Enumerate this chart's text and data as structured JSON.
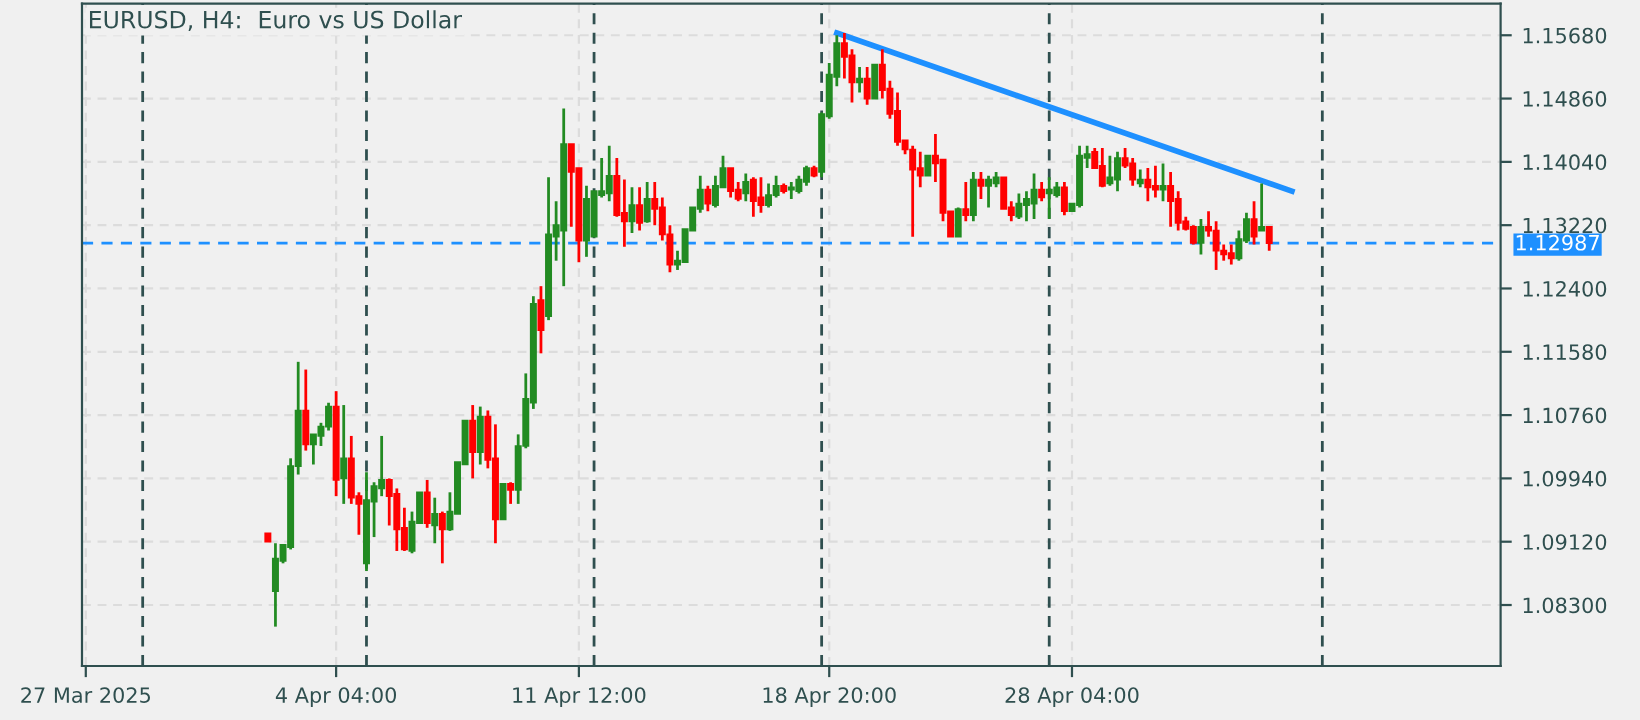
{
  "chart_data": {
    "type": "candlestick",
    "title": "EURUSD, H4:  Euro vs US Dollar",
    "categories": [
      "27 Mar 2025",
      null,
      null,
      null,
      null,
      null,
      null,
      null,
      null,
      null,
      null,
      null,
      null,
      null,
      null,
      null,
      null,
      null,
      null,
      null,
      null,
      null,
      null,
      null,
      null,
      null,
      null,
      null,
      null,
      null,
      null,
      null,
      null,
      "4 Apr 04:00",
      null,
      null,
      null,
      null,
      null,
      null,
      null,
      null,
      null,
      null,
      null,
      null,
      null,
      null,
      null,
      null,
      null,
      null,
      null,
      null,
      null,
      null,
      null,
      null,
      null,
      null,
      null,
      null,
      null,
      null,
      null,
      "11 Apr 12:00",
      null,
      null,
      null,
      null,
      null,
      null,
      null,
      null,
      null,
      null,
      null,
      null,
      null,
      null,
      null,
      null,
      null,
      null,
      null,
      null,
      null,
      null,
      null,
      null,
      null,
      null,
      null,
      null,
      null,
      null,
      null,
      null,
      "18 Apr 20:00",
      null,
      null,
      null,
      null,
      null,
      null,
      null,
      null,
      null,
      null,
      null,
      null,
      null,
      null,
      null,
      null,
      null,
      null,
      null,
      null,
      null,
      null,
      null,
      null,
      null,
      null,
      null,
      null,
      null,
      null,
      null,
      "28 Apr 04:00",
      null,
      null,
      null,
      null,
      null,
      null,
      null,
      null,
      null,
      null,
      null,
      null,
      null,
      null,
      null,
      null,
      null,
      null,
      null,
      null,
      null,
      null,
      null,
      null,
      null,
      null,
      null,
      null,
      null,
      null,
      null,
      null,
      null,
      null,
      null,
      null,
      null,
      null,
      null,
      null,
      null,
      null,
      null,
      null,
      null,
      null,
      null,
      null,
      null,
      null,
      null,
      null,
      null,
      null,
      null,
      null
    ],
    "ohlc": [
      null,
      null,
      null,
      null,
      null,
      null,
      null,
      null,
      null,
      null,
      null,
      null,
      null,
      null,
      null,
      null,
      null,
      null,
      null,
      null,
      null,
      null,
      null,
      null,
      [
        1.0923,
        1.0923,
        1.0912,
        1.0912
      ],
      [
        1.0848,
        1.091,
        1.0802,
        1.089
      ],
      [
        1.0887,
        1.0908,
        1.0884,
        1.0908
      ],
      [
        1.0905,
        1.102,
        1.0902,
        1.101
      ],
      [
        1.101,
        1.1145,
        1.0999,
        1.1082
      ],
      [
        1.1082,
        1.1135,
        1.103,
        1.1038
      ],
      [
        1.1038,
        1.1051,
        1.1012,
        1.1051
      ],
      [
        1.1049,
        1.1066,
        1.1036,
        1.1061
      ],
      [
        1.1061,
        1.1092,
        1.1056,
        1.1087
      ],
      [
        1.1087,
        1.1107,
        1.0971,
        1.0992
      ],
      [
        1.0994,
        1.1089,
        1.0961,
        1.102
      ],
      [
        1.102,
        1.1049,
        1.0961,
        1.0969
      ],
      [
        1.0971,
        1.0976,
        1.0921,
        1.0961
      ],
      [
        1.0884,
        1.1002,
        1.0874,
        1.0966
      ],
      [
        1.0964,
        1.0989,
        1.0918,
        1.0984
      ],
      [
        1.0981,
        1.1049,
        1.0971,
        1.0992
      ],
      [
        1.0992,
        1.0994,
        1.0933,
        1.0971
      ],
      [
        1.0974,
        1.0981,
        1.09,
        1.0928
      ],
      [
        1.093,
        1.0956,
        1.09,
        1.0902
      ],
      [
        1.09,
        1.0951,
        1.0897,
        1.0938
      ],
      [
        1.0936,
        1.0976,
        1.0936,
        1.0976
      ],
      [
        1.0976,
        1.0992,
        1.093,
        1.0936
      ],
      [
        1.0933,
        1.0969,
        1.091,
        1.0948
      ],
      [
        1.0948,
        1.0951,
        1.0884,
        1.0928
      ],
      [
        1.0928,
        1.0976,
        1.0926,
        1.0951
      ],
      [
        1.0948,
        1.1015,
        1.0948,
        1.1015
      ],
      [
        1.1012,
        1.1069,
        1.1012,
        1.1069
      ],
      [
        1.1069,
        1.1089,
        1.0994,
        1.1028
      ],
      [
        1.1028,
        1.1087,
        1.1012,
        1.1074
      ],
      [
        1.1074,
        1.1082,
        1.1007,
        1.1018
      ],
      [
        1.102,
        1.1064,
        1.091,
        1.0941
      ],
      [
        1.0941,
        1.0987,
        1.0941,
        1.0987
      ],
      [
        1.0987,
        1.0989,
        1.0961,
        1.0979
      ],
      [
        1.0979,
        1.1051,
        1.0961,
        1.1036
      ],
      [
        1.1036,
        1.113,
        1.1033,
        1.1097
      ],
      [
        1.1092,
        1.123,
        1.1084,
        1.122
      ],
      [
        1.1225,
        1.1243,
        1.1156,
        1.1186
      ],
      [
        1.1204,
        1.1384,
        1.1199,
        1.131
      ],
      [
        1.1307,
        1.1353,
        1.1276,
        1.1322
      ],
      [
        1.1315,
        1.1473,
        1.1243,
        1.1427
      ],
      [
        1.1427,
        1.1427,
        1.132,
        1.1391
      ],
      [
        1.1396,
        1.1396,
        1.1274,
        1.1302
      ],
      [
        1.1302,
        1.1373,
        1.1281,
        1.1356
      ],
      [
        1.1307,
        1.1366,
        1.1307,
        1.1366
      ],
      [
        1.1361,
        1.1409,
        1.1358,
        1.1366
      ],
      [
        1.1363,
        1.1425,
        1.1353,
        1.1386
      ],
      [
        1.1386,
        1.1409,
        1.1333,
        1.1335
      ],
      [
        1.1338,
        1.1381,
        1.1294,
        1.1327
      ],
      [
        1.1327,
        1.1371,
        1.1312,
        1.1348
      ],
      [
        1.1348,
        1.1371,
        1.1315,
        1.1325
      ],
      [
        1.1327,
        1.1378,
        1.1325,
        1.1356
      ],
      [
        1.1356,
        1.1378,
        1.1322,
        1.1343
      ],
      [
        1.1345,
        1.1358,
        1.1302,
        1.131
      ],
      [
        1.131,
        1.1322,
        1.1261,
        1.1271
      ],
      [
        1.1271,
        1.1289,
        1.1264,
        1.1276
      ],
      [
        1.1274,
        1.1317,
        1.1274,
        1.1317
      ],
      [
        1.1315,
        1.1345,
        1.1315,
        1.1345
      ],
      [
        1.1343,
        1.1386,
        1.1338,
        1.1368
      ],
      [
        1.1368,
        1.1373,
        1.134,
        1.135
      ],
      [
        1.1348,
        1.1386,
        1.1345,
        1.1373
      ],
      [
        1.1371,
        1.1412,
        1.1371,
        1.1396
      ],
      [
        1.1396,
        1.1396,
        1.1358,
        1.1366
      ],
      [
        1.1368,
        1.1378,
        1.1353,
        1.1356
      ],
      [
        1.1363,
        1.1389,
        1.1353,
        1.1378
      ],
      [
        1.1381,
        1.1384,
        1.1333,
        1.1353
      ],
      [
        1.1358,
        1.1384,
        1.1338,
        1.1348
      ],
      [
        1.1348,
        1.1376,
        1.1345,
        1.1361
      ],
      [
        1.1361,
        1.1386,
        1.1358,
        1.1373
      ],
      [
        1.1373,
        1.1376,
        1.1363,
        1.1366
      ],
      [
        1.1368,
        1.1378,
        1.1356,
        1.1371
      ],
      [
        1.1366,
        1.1386,
        1.1363,
        1.1381
      ],
      [
        1.1378,
        1.1399,
        1.1373,
        1.1396
      ],
      [
        1.1396,
        1.1399,
        1.1384,
        1.1386
      ],
      [
        1.1391,
        1.1468,
        1.1384,
        1.1466
      ],
      [
        1.1463,
        1.1532,
        1.146,
        1.1517
      ],
      [
        1.1514,
        1.1568,
        1.1502,
        1.1558
      ],
      [
        1.1558,
        1.1571,
        1.1512,
        1.154
      ],
      [
        1.1542,
        1.155,
        1.1481,
        1.1507
      ],
      [
        1.1507,
        1.1527,
        1.1494,
        1.1512
      ],
      [
        1.1512,
        1.1527,
        1.1478,
        1.1486
      ],
      [
        1.1486,
        1.153,
        1.1486,
        1.153
      ],
      [
        1.153,
        1.155,
        1.1486,
        1.1497
      ],
      [
        1.1499,
        1.1509,
        1.146,
        1.1466
      ],
      [
        1.147,
        1.1494,
        1.1425,
        1.143
      ],
      [
        1.1432,
        1.1432,
        1.1414,
        1.142
      ],
      [
        1.142,
        1.1425,
        1.1307,
        1.1394
      ],
      [
        1.1396,
        1.1417,
        1.1371,
        1.1386
      ],
      [
        1.1386,
        1.1412,
        1.1386,
        1.1412
      ],
      [
        1.1412,
        1.144,
        1.1378,
        1.1402
      ],
      [
        1.1407,
        1.1407,
        1.1327,
        1.1338
      ],
      [
        1.134,
        1.134,
        1.1307,
        1.1307
      ],
      [
        1.1307,
        1.1345,
        1.1307,
        1.1343
      ],
      [
        1.1343,
        1.1378,
        1.1327,
        1.1335
      ],
      [
        1.1335,
        1.1391,
        1.1327,
        1.1381
      ],
      [
        1.1381,
        1.1391,
        1.1356,
        1.1373
      ],
      [
        1.1373,
        1.1386,
        1.1345,
        1.1381
      ],
      [
        1.1376,
        1.1391,
        1.1371,
        1.1384
      ],
      [
        1.1384,
        1.1384,
        1.1343,
        1.1343
      ],
      [
        1.1345,
        1.1353,
        1.1327,
        1.1335
      ],
      [
        1.1333,
        1.1363,
        1.133,
        1.135
      ],
      [
        1.1348,
        1.1366,
        1.1327,
        1.1356
      ],
      [
        1.135,
        1.1389,
        1.133,
        1.1368
      ],
      [
        1.1368,
        1.1378,
        1.1353,
        1.1358
      ],
      [
        1.1363,
        1.1384,
        1.133,
        1.1368
      ],
      [
        1.1361,
        1.1378,
        1.1358,
        1.1371
      ],
      [
        1.1371,
        1.1378,
        1.1335,
        1.134
      ],
      [
        1.134,
        1.135,
        1.134,
        1.135
      ],
      [
        1.1348,
        1.1425,
        1.1345,
        1.1412
      ],
      [
        1.1409,
        1.1425,
        1.1396,
        1.1414
      ],
      [
        1.1417,
        1.1422,
        1.1396,
        1.1396
      ],
      [
        1.1399,
        1.1422,
        1.1371,
        1.1373
      ],
      [
        1.1376,
        1.1412,
        1.1373,
        1.1384
      ],
      [
        1.1381,
        1.1417,
        1.1366,
        1.1409
      ],
      [
        1.1409,
        1.1422,
        1.1396,
        1.1399
      ],
      [
        1.1402,
        1.1409,
        1.1373,
        1.1381
      ],
      [
        1.1376,
        1.1394,
        1.1371,
        1.1381
      ],
      [
        1.1381,
        1.1396,
        1.1353,
        1.1371
      ],
      [
        1.1373,
        1.1399,
        1.1358,
        1.1368
      ],
      [
        1.1368,
        1.1402,
        1.1353,
        1.1373
      ],
      [
        1.1373,
        1.1391,
        1.132,
        1.1353
      ],
      [
        1.1356,
        1.1366,
        1.1315,
        1.1325
      ],
      [
        1.1327,
        1.1333,
        1.1315,
        1.1317
      ],
      [
        1.132,
        1.1322,
        1.1297,
        1.1299
      ],
      [
        1.1299,
        1.133,
        1.1284,
        1.132
      ],
      [
        1.132,
        1.134,
        1.1307,
        1.1315
      ],
      [
        1.1315,
        1.1327,
        1.1264,
        1.1289
      ],
      [
        1.1289,
        1.1297,
        1.1276,
        1.1284
      ],
      [
        1.1286,
        1.1297,
        1.1271,
        1.1279
      ],
      [
        1.1279,
        1.1315,
        1.1276,
        1.1304
      ],
      [
        1.1302,
        1.1338,
        1.1299,
        1.133
      ],
      [
        1.133,
        1.1353,
        1.1297,
        1.1307
      ],
      [
        1.1315,
        1.1376,
        1.1315,
        1.132
      ],
      [
        1.132,
        1.132,
        1.1289,
        1.12987
      ],
      null,
      null,
      null,
      null,
      null,
      null,
      null,
      null,
      null,
      null,
      null,
      null,
      null,
      null,
      null,
      null,
      null,
      null,
      null,
      null,
      null,
      null,
      null,
      null,
      null,
      null,
      null,
      null,
      null,
      null
    ],
    "colors": [
      null,
      null,
      null,
      null,
      null,
      null,
      null,
      null,
      null,
      null,
      null,
      null,
      null,
      null,
      null,
      null,
      null,
      null,
      null,
      null,
      null,
      null,
      null,
      null,
      "#ff0000",
      "#228b22",
      "#228b22",
      "#228b22",
      "#228b22",
      "#ff0000",
      "#228b22",
      "#228b22",
      "#228b22",
      "#ff0000",
      "#228b22",
      "#ff0000",
      "#ff0000",
      "#228b22",
      "#228b22",
      "#228b22",
      "#ff0000",
      "#ff0000",
      "#ff0000",
      "#228b22",
      "#228b22",
      "#ff0000",
      "#228b22",
      "#ff0000",
      "#228b22",
      "#228b22",
      "#228b22",
      "#ff0000",
      "#228b22",
      "#ff0000",
      "#ff0000",
      "#228b22",
      "#ff0000",
      "#228b22",
      "#228b22",
      "#228b22",
      "#ff0000",
      "#228b22",
      "#228b22",
      "#228b22",
      "#ff0000",
      "#ff0000",
      "#228b22",
      "#228b22",
      "#228b22",
      "#228b22",
      "#ff0000",
      "#ff0000",
      "#228b22",
      "#ff0000",
      "#228b22",
      "#ff0000",
      "#ff0000",
      "#ff0000",
      "#228b22",
      "#228b22",
      "#228b22",
      "#228b22",
      "#ff0000",
      "#228b22",
      "#228b22",
      "#ff0000",
      "#ff0000",
      "#228b22",
      "#ff0000",
      "#ff0000",
      "#228b22",
      "#228b22",
      "#ff0000",
      "#228b22",
      "#228b22",
      "#228b22",
      "#ff0000",
      "#228b22",
      "#228b22",
      "#228b22",
      "#ff0000",
      "#ff0000",
      "#228b22",
      "#ff0000",
      "#228b22",
      "#ff0000",
      "#ff0000",
      "#ff0000",
      "#ff0000",
      "#ff0000",
      "#ff0000",
      "#228b22",
      "#ff0000",
      "#ff0000",
      "#ff0000",
      "#228b22",
      "#ff0000",
      "#228b22",
      "#ff0000",
      "#228b22",
      "#228b22",
      "#ff0000",
      "#ff0000",
      "#228b22",
      "#228b22",
      "#228b22",
      "#ff0000",
      "#228b22",
      "#228b22",
      "#ff0000",
      "#228b22",
      "#228b22",
      "#228b22",
      "#ff0000",
      "#ff0000",
      "#228b22",
      "#228b22",
      "#ff0000",
      "#ff0000",
      "#228b22",
      "#ff0000",
      "#ff0000",
      "#228b22",
      "#ff0000",
      "#ff0000",
      "#ff0000",
      "#ff0000",
      "#228b22",
      "#ff0000",
      "#ff0000",
      "#ff0000",
      "#ff0000",
      "#228b22",
      "#228b22",
      "#ff0000",
      "#228b22",
      "#ff0000",
      null,
      null,
      null,
      null,
      null,
      null,
      null,
      null,
      null,
      null,
      null,
      null,
      null,
      null,
      null,
      null,
      null,
      null,
      null,
      null,
      null,
      null,
      null,
      null,
      null,
      null,
      null,
      null,
      null,
      null
    ],
    "series": [
      {
        "type": "line",
        "color": "#1e90ff",
        "values": [
          null,
          null,
          null,
          null,
          null,
          null,
          null,
          null,
          null,
          null,
          null,
          null,
          null,
          null,
          null,
          null,
          null,
          null,
          null,
          null,
          null,
          null,
          null,
          null,
          null,
          null,
          null,
          null,
          null,
          null,
          null,
          null,
          null,
          null,
          null,
          null,
          null,
          null,
          null,
          null,
          null,
          null,
          null,
          null,
          null,
          null,
          null,
          null,
          null,
          null,
          null,
          null,
          null,
          null,
          null,
          null,
          null,
          null,
          null,
          null,
          null,
          null,
          null,
          null,
          null,
          null,
          null,
          null,
          null,
          null,
          null,
          null,
          null,
          null,
          null,
          null,
          null,
          null,
          null,
          null,
          null,
          null,
          null,
          null,
          null,
          null,
          null,
          null,
          null,
          null,
          null,
          null,
          null,
          null,
          null,
          null,
          null,
          null,
          null,
          1.1571,
          null,
          null,
          null,
          null,
          null,
          null,
          null,
          null,
          null,
          null,
          null,
          null,
          null,
          null,
          null,
          null,
          null,
          null,
          null,
          null,
          null,
          null,
          null,
          null,
          null,
          null,
          null,
          null,
          null,
          null,
          null,
          null,
          null,
          null,
          null,
          null,
          null,
          null,
          null,
          null,
          null,
          null,
          null,
          null,
          null,
          null,
          null,
          null,
          null,
          null,
          null,
          null,
          null,
          null,
          null,
          null,
          null,
          null,
          null,
          1.1366,
          null,
          null,
          null,
          null,
          null,
          null,
          null,
          null,
          null,
          null,
          null,
          null,
          null,
          null,
          null,
          null,
          null,
          null,
          null,
          null,
          null,
          null,
          null,
          null,
          null,
          null,
          null
        ]
      }
    ],
    "ylim": [
      1.0751,
      1.1609
    ],
    "yticks": [
      {
        "value": 1.1568,
        "label": "1.15680"
      },
      {
        "value": 1.1486,
        "label": "1.14860"
      },
      {
        "value": 1.1404,
        "label": "1.14040"
      },
      {
        "value": 1.1322,
        "label": "1.13220"
      },
      {
        "value": 1.124,
        "label": "1.12400"
      },
      {
        "value": 1.1158,
        "label": "1.11580"
      },
      {
        "value": 1.1076,
        "label": "1.10760"
      },
      {
        "value": 1.0994,
        "label": "1.09940"
      },
      {
        "value": 1.0912,
        "label": "1.09120"
      },
      {
        "value": 1.083,
        "label": "1.08300"
      }
    ],
    "ref_lines": [
      {
        "axis": "y",
        "value": 1.12987,
        "label": "1.12987",
        "color": "#1e90ff",
        "line_style": "dashed"
      }
    ],
    "grid": true
  }
}
